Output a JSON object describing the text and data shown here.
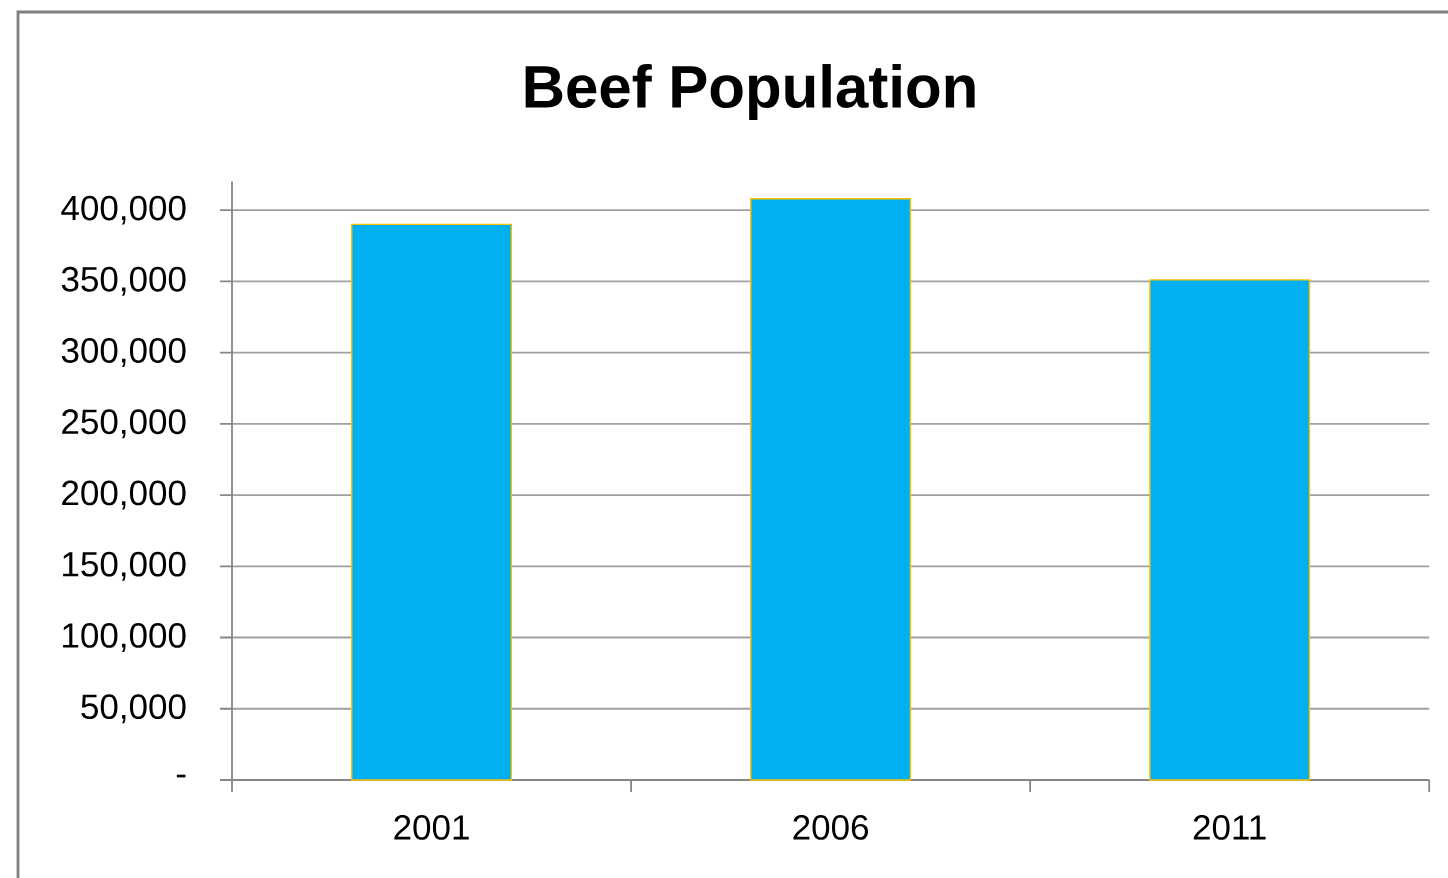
{
  "chart_data": {
    "type": "bar",
    "title": "Beef Population",
    "categories": [
      "2001",
      "2006",
      "2011"
    ],
    "values": [
      390000,
      408000,
      351000
    ],
    "color": "#00b0f0",
    "ylim": [
      0,
      420000
    ],
    "yticks": [
      {
        "value": 0,
        "label": "-"
      },
      {
        "value": 50000,
        "label": "50,000"
      },
      {
        "value": 100000,
        "label": "100,000"
      },
      {
        "value": 150000,
        "label": "150,000"
      },
      {
        "value": 200000,
        "label": "200,000"
      },
      {
        "value": 250000,
        "label": "250,000"
      },
      {
        "value": 300000,
        "label": "300,000"
      },
      {
        "value": 350000,
        "label": "350,000"
      },
      {
        "value": 400000,
        "label": "400,000"
      }
    ],
    "grid": "y",
    "legend": false
  }
}
